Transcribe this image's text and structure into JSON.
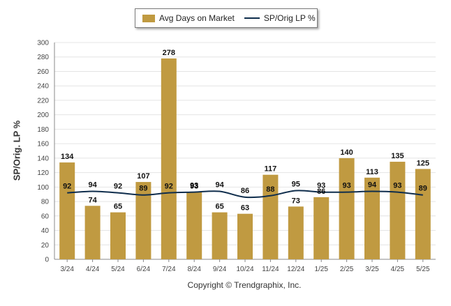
{
  "chart_data": {
    "type": "bar",
    "categories": [
      "3/24",
      "4/24",
      "5/24",
      "6/24",
      "7/24",
      "8/24",
      "9/24",
      "10/24",
      "11/24",
      "12/24",
      "1/25",
      "2/25",
      "3/25",
      "4/25",
      "5/25"
    ],
    "series": [
      {
        "name": "Avg Days on Market",
        "type": "bar",
        "values": [
          134,
          74,
          65,
          107,
          278,
          93,
          65,
          63,
          117,
          73,
          86,
          140,
          113,
          135,
          125
        ]
      },
      {
        "name": "SP/Orig LP %",
        "type": "line",
        "values": [
          92,
          94,
          92,
          89,
          92,
          93,
          94,
          86,
          88,
          95,
          93,
          93,
          94,
          93,
          89
        ]
      }
    ],
    "ylabel": "SP/Orig. LP %",
    "xlabel": "",
    "ylim": [
      0,
      300
    ],
    "yticks": [
      0,
      20,
      40,
      60,
      80,
      100,
      120,
      140,
      160,
      180,
      200,
      220,
      240,
      260,
      280,
      300
    ],
    "grid": true,
    "legend_position": "top-center"
  },
  "colors": {
    "bar": "#c09a41",
    "line": "#0f2d4c",
    "grid": "#e4e4e4",
    "axis": "#888888"
  },
  "legend": {
    "bar_label": "Avg Days on Market",
    "line_label": "SP/Orig LP %"
  },
  "footer": {
    "copyright": "Copyright © Trendgraphix, Inc."
  }
}
